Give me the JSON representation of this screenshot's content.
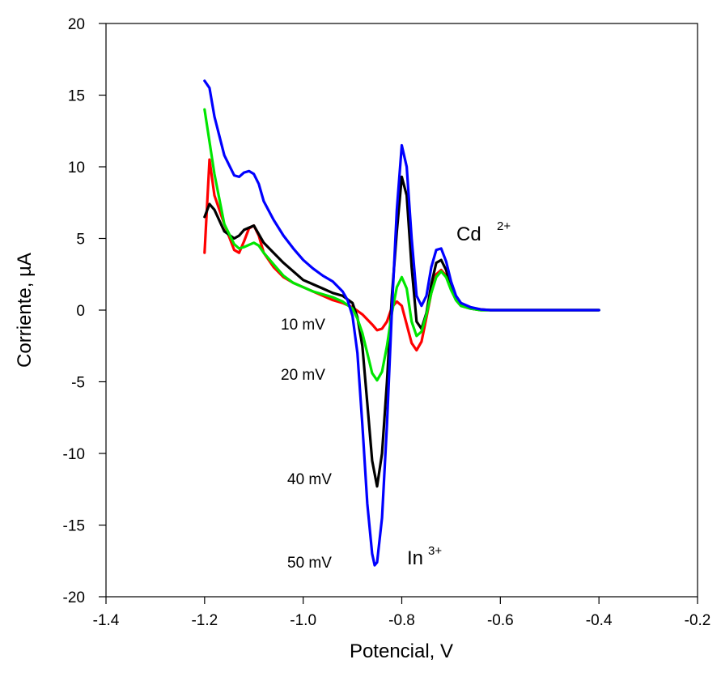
{
  "chart_data": {
    "type": "line",
    "title": "",
    "xlabel": "Potencial, V",
    "ylabel": "Corriente, µA",
    "xlim": [
      -1.4,
      -0.2
    ],
    "ylim": [
      -20,
      20
    ],
    "xticks": [
      -1.4,
      -1.2,
      -1.0,
      -0.8,
      -0.6,
      -0.4,
      -0.2
    ],
    "xtick_labels": [
      "-1.4",
      "-1.2",
      "-1.0",
      "-0.8",
      "-0.6",
      "-0.4",
      "-0.2"
    ],
    "yticks": [
      -20,
      -15,
      -10,
      -5,
      0,
      5,
      10,
      15,
      20
    ],
    "ytick_labels": [
      "-20",
      "-15",
      "-10",
      "-5",
      "0",
      "5",
      "10",
      "15",
      "20"
    ],
    "grid": false,
    "legend": "none",
    "series": [
      {
        "color": "#ff0000",
        "x": [
          -1.2,
          -1.19,
          -1.18,
          -1.16,
          -1.14,
          -1.13,
          -1.12,
          -1.11,
          -1.1,
          -1.09,
          -1.08,
          -1.06,
          -1.04,
          -1.02,
          -1.0,
          -0.98,
          -0.96,
          -0.94,
          -0.92,
          -0.9,
          -0.88,
          -0.86,
          -0.85,
          -0.84,
          -0.83,
          -0.82,
          -0.81,
          -0.8,
          -0.79,
          -0.78,
          -0.77,
          -0.76,
          -0.75,
          -0.74,
          -0.73,
          -0.72,
          -0.71,
          -0.7,
          -0.69,
          -0.68,
          -0.66,
          -0.64,
          -0.62,
          -0.6,
          -0.55,
          -0.5,
          -0.45,
          -0.4
        ],
        "y": [
          4.0,
          10.5,
          8.0,
          6.0,
          4.2,
          4.0,
          4.8,
          5.7,
          5.9,
          5.2,
          4.0,
          3.0,
          2.3,
          1.9,
          1.6,
          1.3,
          1.0,
          0.7,
          0.5,
          0.2,
          -0.3,
          -1.0,
          -1.4,
          -1.3,
          -0.8,
          0.2,
          0.6,
          0.3,
          -1.0,
          -2.3,
          -2.8,
          -2.2,
          -0.5,
          1.2,
          2.5,
          2.8,
          2.4,
          1.5,
          0.8,
          0.4,
          0.15,
          0.05,
          0.0,
          0.0,
          0.0,
          0.0,
          0.0,
          0.0
        ]
      },
      {
        "color": "#000000",
        "x": [
          -1.2,
          -1.19,
          -1.18,
          -1.16,
          -1.14,
          -1.13,
          -1.12,
          -1.1,
          -1.09,
          -1.08,
          -1.06,
          -1.04,
          -1.02,
          -1.0,
          -0.98,
          -0.96,
          -0.94,
          -0.92,
          -0.9,
          -0.89,
          -0.88,
          -0.87,
          -0.86,
          -0.85,
          -0.84,
          -0.83,
          -0.82,
          -0.81,
          -0.8,
          -0.79,
          -0.78,
          -0.77,
          -0.76,
          -0.75,
          -0.74,
          -0.73,
          -0.72,
          -0.71,
          -0.7,
          -0.69,
          -0.68,
          -0.66,
          -0.64,
          -0.62,
          -0.6,
          -0.55,
          -0.5,
          -0.45,
          -0.4
        ],
        "y": [
          6.5,
          7.4,
          7.0,
          5.5,
          5.0,
          5.2,
          5.6,
          5.9,
          5.3,
          4.7,
          4.0,
          3.3,
          2.7,
          2.1,
          1.8,
          1.5,
          1.2,
          1.0,
          0.5,
          -0.5,
          -2.5,
          -6.5,
          -10.5,
          -12.3,
          -10.0,
          -5.0,
          1.0,
          5.5,
          9.3,
          8.0,
          3.0,
          -0.8,
          -1.3,
          -0.2,
          1.8,
          3.3,
          3.5,
          2.8,
          1.5,
          0.7,
          0.3,
          0.1,
          0.0,
          0.0,
          0.0,
          0.0,
          0.0,
          0.0,
          0.0
        ]
      },
      {
        "color": "#00e600",
        "x": [
          -1.2,
          -1.18,
          -1.16,
          -1.14,
          -1.13,
          -1.12,
          -1.1,
          -1.09,
          -1.08,
          -1.06,
          -1.04,
          -1.02,
          -1.0,
          -0.98,
          -0.96,
          -0.94,
          -0.92,
          -0.9,
          -0.89,
          -0.88,
          -0.87,
          -0.86,
          -0.85,
          -0.84,
          -0.83,
          -0.82,
          -0.81,
          -0.8,
          -0.79,
          -0.78,
          -0.77,
          -0.76,
          -0.75,
          -0.74,
          -0.73,
          -0.72,
          -0.71,
          -0.7,
          -0.69,
          -0.68,
          -0.66,
          -0.64,
          -0.62,
          -0.6,
          -0.55,
          -0.5,
          -0.45,
          -0.4
        ],
        "y": [
          14.0,
          9.5,
          6.0,
          4.6,
          4.3,
          4.4,
          4.7,
          4.5,
          4.0,
          3.2,
          2.4,
          1.9,
          1.6,
          1.3,
          1.1,
          0.9,
          0.6,
          0.1,
          -0.6,
          -1.6,
          -3.0,
          -4.4,
          -4.9,
          -4.3,
          -2.5,
          -0.2,
          1.6,
          2.3,
          1.5,
          -0.8,
          -1.8,
          -1.5,
          -0.3,
          1.2,
          2.3,
          2.7,
          2.3,
          1.4,
          0.7,
          0.3,
          0.1,
          0.0,
          0.0,
          0.0,
          0.0,
          0.0,
          0.0,
          0.0
        ]
      },
      {
        "color": "#0000ff",
        "x": [
          -1.2,
          -1.19,
          -1.18,
          -1.16,
          -1.14,
          -1.13,
          -1.12,
          -1.11,
          -1.1,
          -1.09,
          -1.08,
          -1.06,
          -1.04,
          -1.02,
          -1.0,
          -0.98,
          -0.96,
          -0.94,
          -0.92,
          -0.91,
          -0.9,
          -0.89,
          -0.88,
          -0.87,
          -0.86,
          -0.855,
          -0.85,
          -0.84,
          -0.83,
          -0.82,
          -0.81,
          -0.8,
          -0.79,
          -0.78,
          -0.77,
          -0.76,
          -0.75,
          -0.74,
          -0.73,
          -0.72,
          -0.71,
          -0.7,
          -0.69,
          -0.68,
          -0.66,
          -0.64,
          -0.62,
          -0.6,
          -0.55,
          -0.5,
          -0.45,
          -0.4
        ],
        "y": [
          16.0,
          15.5,
          13.5,
          10.8,
          9.4,
          9.3,
          9.6,
          9.7,
          9.5,
          8.8,
          7.6,
          6.3,
          5.2,
          4.3,
          3.5,
          2.9,
          2.4,
          2.0,
          1.3,
          0.7,
          -0.4,
          -3.0,
          -8.0,
          -13.5,
          -17.0,
          -17.8,
          -17.6,
          -14.5,
          -8.0,
          0.0,
          7.0,
          11.5,
          10.0,
          5.0,
          1.0,
          0.3,
          1.0,
          3.0,
          4.2,
          4.3,
          3.4,
          2.0,
          1.0,
          0.5,
          0.2,
          0.05,
          0.0,
          0.0,
          0.0,
          0.0,
          0.0,
          0.0
        ]
      }
    ],
    "annotations": {
      "label_10": "10 mV",
      "label_20": "20 mV",
      "label_40": "40 mV",
      "label_50": "50 mV",
      "cd_text": "Cd",
      "cd_sup": "2+",
      "in_text": "In",
      "in_sup": "3+"
    }
  }
}
